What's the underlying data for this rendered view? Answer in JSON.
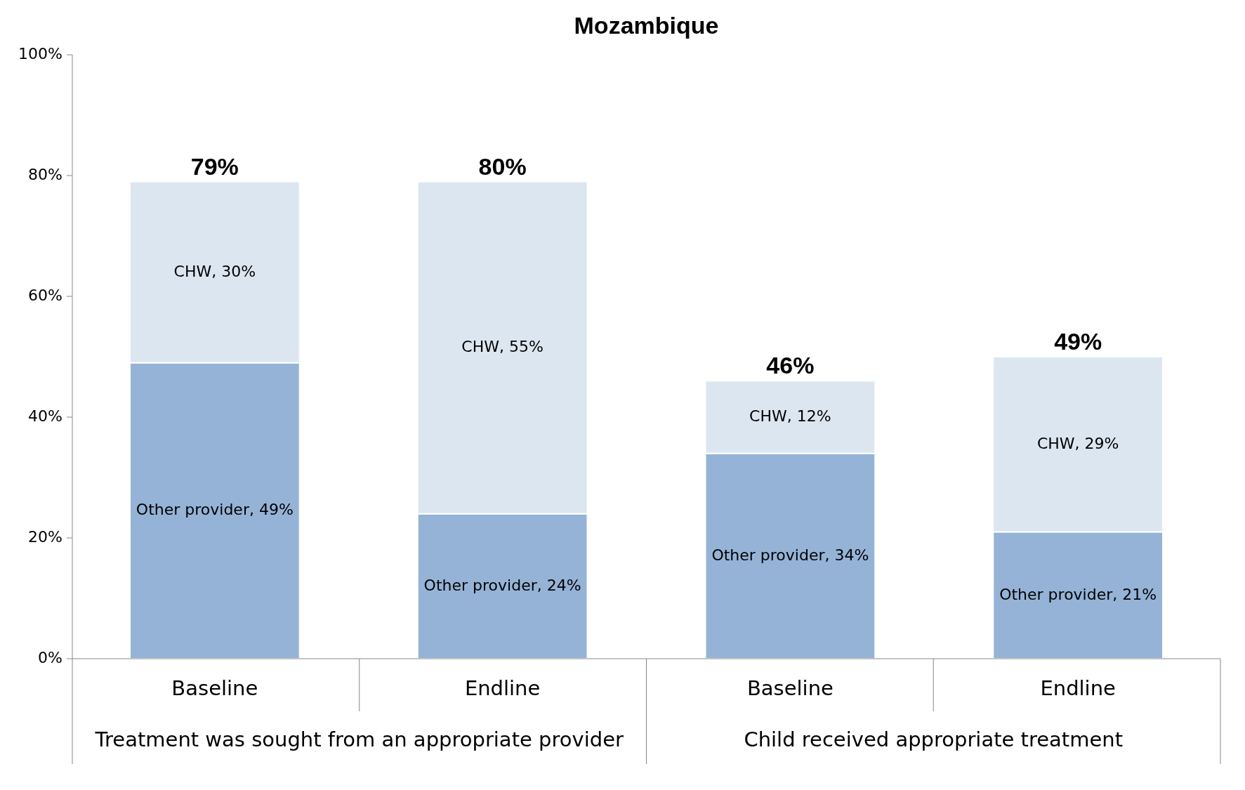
{
  "chart_data": {
    "type": "bar",
    "title": "Mozambique",
    "stacked": true,
    "categories": [
      "Baseline",
      "Endline",
      "Baseline",
      "Endline"
    ],
    "series": [
      {
        "color": "#95b3d7",
        "values": [
          49,
          24,
          34,
          21
        ],
        "value_labels": [
          "Other provider, 49%",
          "Other provider, 24%",
          "Other provider, 34%",
          "Other provider, 21%"
        ]
      },
      {
        "color": "#dce6f1",
        "values": [
          30,
          55,
          12,
          29
        ],
        "value_labels": [
          "CHW, 30%",
          "CHW, 55%",
          "CHW, 12%",
          "CHW, 29%"
        ]
      }
    ],
    "totals": [
      "79%",
      "80%",
      "46%",
      "49%"
    ],
    "ylim": [
      0,
      100
    ],
    "yticks": [
      {
        "value": 0,
        "label": "0%"
      },
      {
        "value": 20,
        "label": "20%"
      },
      {
        "value": 40,
        "label": "40%"
      },
      {
        "value": 60,
        "label": "60%"
      },
      {
        "value": 80,
        "label": "80%"
      },
      {
        "value": 100,
        "label": "100%"
      }
    ],
    "grid": false,
    "annotations": [
      "Treatment was sought from an appropriate provider",
      "Child received appropriate treatment"
    ]
  }
}
